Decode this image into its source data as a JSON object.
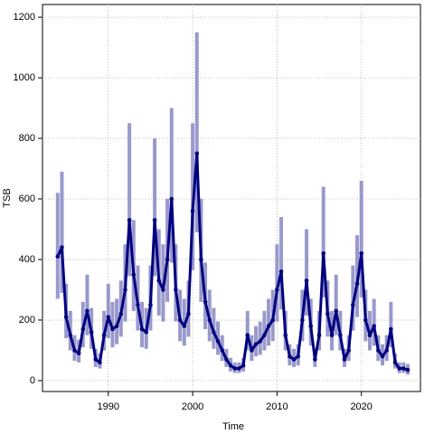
{
  "chart_data": {
    "type": "line",
    "xlabel": "Time",
    "ylabel": "TSB",
    "x": [
      1984,
      1984.5,
      1985,
      1985.5,
      1986,
      1986.5,
      1987,
      1987.5,
      1988,
      1988.5,
      1989,
      1989.5,
      1990,
      1990.5,
      1991,
      1991.5,
      1992,
      1992.5,
      1993,
      1993.5,
      1994,
      1994.5,
      1995,
      1995.5,
      1996,
      1996.5,
      1997,
      1997.5,
      1998,
      1998.5,
      1999,
      1999.5,
      2000,
      2000.5,
      2001,
      2001.5,
      2002,
      2002.5,
      2003,
      2003.5,
      2004,
      2004.5,
      2005,
      2005.5,
      2006,
      2006.5,
      2007,
      2007.5,
      2008,
      2008.5,
      2009,
      2009.5,
      2010,
      2010.5,
      2011,
      2011.5,
      2012,
      2012.5,
      2013,
      2013.5,
      2014,
      2014.5,
      2015,
      2015.5,
      2016,
      2016.5,
      2017,
      2017.5,
      2018,
      2018.5,
      2019,
      2019.5,
      2020,
      2020.5,
      2021,
      2021.5,
      2022,
      2022.5,
      2023,
      2023.5,
      2024,
      2024.5,
      2025,
      2025.5
    ],
    "series": [
      {
        "color": "#000080",
        "band_color": "#9999cc",
        "values": [
          410,
          440,
          210,
          150,
          100,
          90,
          170,
          230,
          160,
          70,
          60,
          150,
          210,
          170,
          180,
          220,
          300,
          530,
          350,
          250,
          170,
          160,
          250,
          530,
          330,
          300,
          400,
          600,
          300,
          200,
          180,
          220,
          560,
          750,
          400,
          260,
          200,
          160,
          130,
          100,
          70,
          50,
          40,
          40,
          50,
          150,
          100,
          120,
          130,
          150,
          180,
          200,
          300,
          360,
          150,
          80,
          70,
          80,
          200,
          330,
          180,
          70,
          150,
          420,
          220,
          150,
          230,
          150,
          70,
          100,
          250,
          320,
          420,
          200,
          150,
          180,
          100,
          80,
          100,
          170,
          60,
          40,
          40,
          35
        ],
        "lower": [
          270,
          290,
          140,
          100,
          65,
          60,
          110,
          150,
          105,
          45,
          40,
          100,
          140,
          110,
          120,
          145,
          195,
          345,
          230,
          165,
          110,
          105,
          165,
          345,
          215,
          195,
          260,
          390,
          195,
          130,
          115,
          145,
          365,
          490,
          260,
          170,
          130,
          105,
          85,
          65,
          45,
          30,
          25,
          25,
          30,
          100,
          65,
          80,
          85,
          100,
          115,
          130,
          195,
          235,
          100,
          50,
          45,
          50,
          130,
          215,
          115,
          45,
          100,
          275,
          145,
          100,
          150,
          100,
          45,
          65,
          165,
          210,
          275,
          130,
          100,
          115,
          65,
          50,
          65,
          110,
          40,
          25,
          25,
          20
        ],
        "upper": [
          620,
          690,
          320,
          230,
          150,
          135,
          260,
          350,
          240,
          105,
          90,
          230,
          320,
          260,
          270,
          330,
          450,
          850,
          530,
          380,
          260,
          240,
          380,
          800,
          500,
          450,
          600,
          900,
          450,
          300,
          270,
          330,
          850,
          1150,
          600,
          390,
          300,
          240,
          195,
          150,
          105,
          75,
          60,
          60,
          75,
          230,
          150,
          180,
          195,
          230,
          270,
          300,
          450,
          540,
          230,
          120,
          105,
          120,
          300,
          500,
          270,
          105,
          230,
          640,
          330,
          230,
          350,
          230,
          105,
          150,
          380,
          480,
          660,
          300,
          230,
          270,
          150,
          120,
          150,
          260,
          90,
          60,
          60,
          55
        ]
      }
    ],
    "xlim": [
      1982.2,
      2027
    ],
    "ylim": [
      -36,
      1242
    ],
    "xticks": [
      1990,
      2000,
      2010,
      2020
    ],
    "yticks": [
      0,
      200,
      400,
      600,
      800,
      1000,
      1200
    ],
    "grid": true
  }
}
